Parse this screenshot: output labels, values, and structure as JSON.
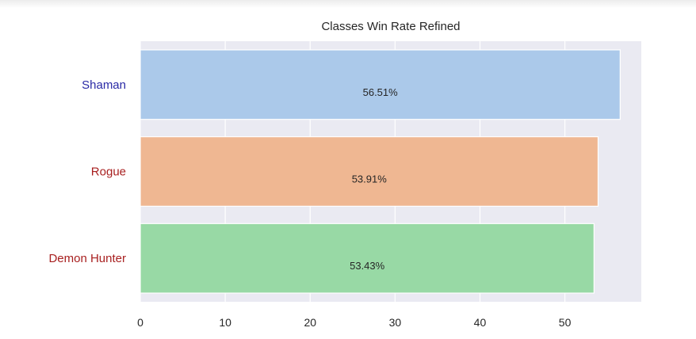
{
  "chart_data": {
    "type": "bar",
    "orientation": "horizontal",
    "title": "Classes Win Rate Refined",
    "xlabel": "",
    "ylabel": "",
    "categories": [
      "Shaman",
      "Rogue",
      "Demon Hunter"
    ],
    "values": [
      56.51,
      53.91,
      53.43
    ],
    "value_labels": [
      "56.51%",
      "53.91%",
      "53.43%"
    ],
    "bar_colors": [
      "#abc9ea",
      "#efb792",
      "#98d9a5"
    ],
    "category_label_colors": [
      "#2a2aa6",
      "#a82020",
      "#a82020"
    ],
    "xlim": [
      0,
      59
    ],
    "xticks": [
      0,
      10,
      20,
      30,
      40,
      50
    ],
    "grid": true,
    "background": "#eaeaf2",
    "legend": "none"
  }
}
